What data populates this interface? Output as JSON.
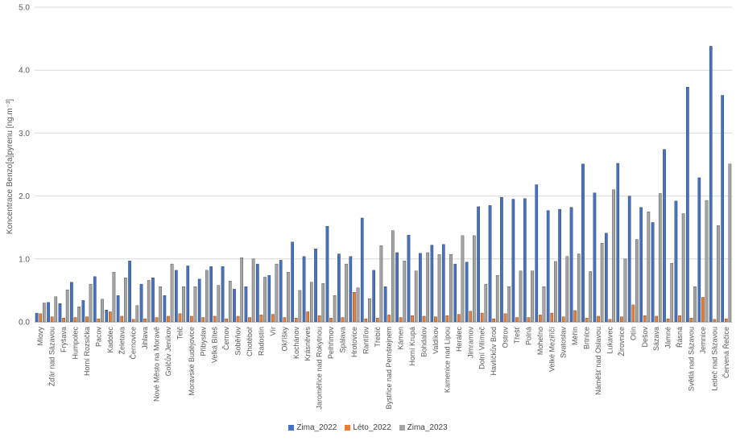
{
  "chart_data": {
    "type": "bar",
    "ylabel": "Koncentrace Benzo[a]pyrenu [ng.m⁻³]",
    "xlabel": "",
    "ylim": [
      0,
      5
    ],
    "yticks": [
      "0.0",
      "1.0",
      "2.0",
      "3.0",
      "4.0",
      "5.0"
    ],
    "categories": [
      "Mlovy",
      "Žďár nad Sázavou",
      "Fryšava",
      "Humpolec",
      "Horní Rozsička",
      "Pacov",
      "Kadolec",
      "Želetava",
      "Černovice",
      "Jihlava",
      "Nové Město na Moravě",
      "Golčův Jeníkov",
      "Telč",
      "Moravské Budějovice",
      "Přibyslav",
      "Velká Bíteš",
      "Černov",
      "Soběňov",
      "Chotěboř",
      "Radostín",
      "Vír",
      "Okříšky",
      "Kochánov",
      "Krásněves",
      "Jaroměřice nad Rokytnou",
      "Pelhřimov",
      "Spálava",
      "Hrotovice",
      "Rantířov",
      "Třebíč",
      "Bystřice nad Pernštejnem",
      "Kámen",
      "Horní Krupá",
      "Bohdalov",
      "Valdíkov",
      "Kamenice nad Lipou",
      "Herálec",
      "Jimramov",
      "Dolní Vilímeč",
      "Havlíčkův Brod",
      "Ostrov",
      "Třešť",
      "Polná",
      "Moheľno",
      "Velké Meziříčí",
      "Svatoslav",
      "Měřín",
      "Brtnice",
      "Náměšť nad Oslavou",
      "Lukavec",
      "Žirovnice",
      "Otín",
      "Dešov",
      "Sázava",
      "Jámné",
      "Řásná",
      "Světlá nad Sázavou",
      "Jemnice",
      "Ledeč nad Sázavou",
      "Červená Řečice"
    ],
    "series": [
      {
        "name": "Zima_2022",
        "color": "#4472c4",
        "values": [
          0.14,
          0.31,
          0.29,
          0.63,
          0.34,
          0.72,
          0.19,
          0.42,
          0.97,
          0.6,
          0.7,
          0.42,
          0.82,
          0.89,
          0.68,
          0.88,
          0.88,
          0.52,
          0.56,
          0.92,
          0.74,
          0.98,
          1.27,
          1.04,
          1.16,
          1.52,
          1.08,
          1.04,
          1.65,
          0.82,
          0.56,
          1.1,
          1.38,
          1.09,
          1.22,
          1.23,
          0.92,
          0.95,
          1.83,
          1.85,
          1.98,
          1.95,
          1.96,
          2.18,
          1.77,
          1.79,
          1.82,
          2.51,
          2.05,
          1.41,
          2.52,
          2.0,
          1.82,
          1.58,
          2.74,
          1.92,
          3.73,
          2.29,
          4.38,
          3.6
        ]
      },
      {
        "name": "Léto_2022",
        "color": "#ed7d31",
        "values": [
          0.13,
          0.08,
          0.06,
          0.07,
          0.08,
          0.05,
          0.16,
          0.09,
          0.04,
          0.05,
          0.07,
          0.09,
          0.13,
          0.09,
          0.07,
          0.09,
          0.05,
          0.09,
          0.07,
          0.11,
          0.12,
          0.07,
          0.06,
          0.16,
          0.1,
          0.06,
          0.07,
          0.47,
          0.05,
          0.06,
          0.11,
          0.07,
          0.1,
          0.09,
          0.08,
          0.1,
          0.12,
          0.17,
          0.14,
          0.05,
          0.13,
          0.07,
          0.07,
          0.11,
          0.14,
          0.08,
          0.18,
          0.06,
          0.09,
          0.04,
          0.08,
          0.27,
          0.1,
          0.09,
          0.05,
          0.1,
          0.06,
          0.39,
          0.04,
          0.05
        ]
      },
      {
        "name": "Zima_2023",
        "color": "#a5a5a5",
        "values": [
          0.3,
          0.4,
          0.51,
          0.24,
          0.6,
          0.36,
          0.79,
          0.7,
          0.26,
          0.66,
          0.56,
          0.92,
          0.56,
          0.56,
          0.82,
          0.58,
          0.65,
          1.02,
          1.0,
          0.71,
          0.92,
          0.79,
          0.5,
          0.63,
          0.61,
          0.42,
          0.92,
          0.54,
          0.37,
          1.21,
          1.45,
          0.97,
          0.81,
          1.1,
          1.07,
          1.07,
          1.37,
          1.37,
          0.6,
          0.74,
          0.56,
          0.81,
          0.81,
          0.56,
          0.96,
          1.04,
          1.08,
          0.8,
          1.25,
          2.1,
          1.0,
          1.31,
          1.75,
          2.04,
          0.93,
          1.72,
          0.56,
          1.93,
          1.53,
          2.51
        ]
      }
    ],
    "legend_position": "bottom",
    "grid": true
  }
}
